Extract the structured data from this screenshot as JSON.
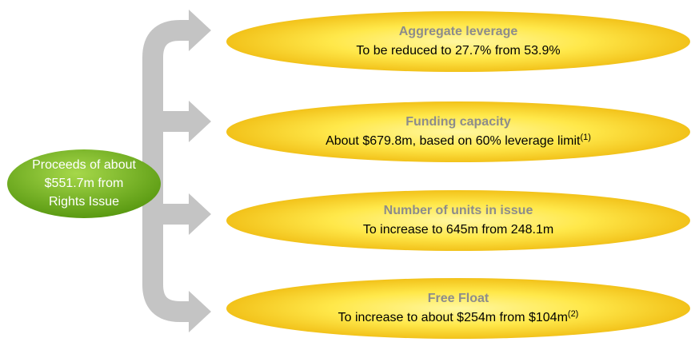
{
  "source": {
    "lines": [
      "Proceeds of about",
      "$551.7m from",
      "Rights Issue"
    ]
  },
  "outcomes": [
    {
      "title": "Aggregate leverage",
      "text": "To be reduced to 27.7% from 53.9%"
    },
    {
      "title": "Funding capacity",
      "text": "About $679.8m, based on 60% leverage limit",
      "note": "(1)"
    },
    {
      "title": "Number of units in issue",
      "text": "To increase to 645m from 248.1m"
    },
    {
      "title": "Free Float",
      "text": "To increase to about $254m from $104m",
      "note": "(2)"
    }
  ]
}
